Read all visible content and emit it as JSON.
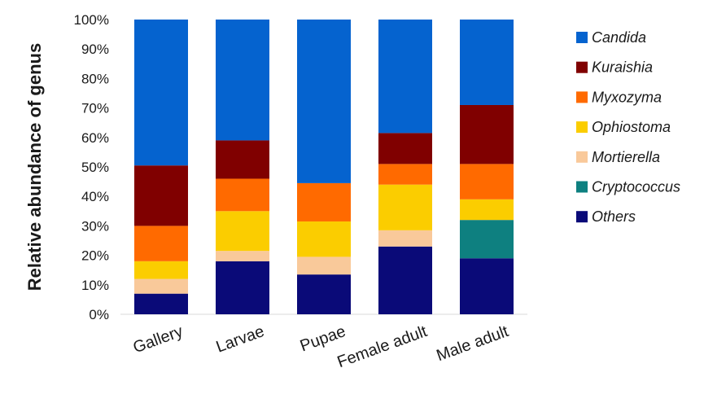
{
  "chart_data": {
    "type": "bar",
    "stacked": true,
    "ylabel": "Relative abundance of genus",
    "xlabel": "",
    "ylim": [
      0,
      100
    ],
    "yticks": [
      "0%",
      "10%",
      "20%",
      "30%",
      "40%",
      "50%",
      "60%",
      "70%",
      "80%",
      "90%",
      "100%"
    ],
    "categories": [
      "Gallery",
      "Larvae",
      "Pupae",
      "Female adult",
      "Male adult"
    ],
    "series": [
      {
        "name": "Others",
        "color": "#0a0a78",
        "values": [
          7,
          18,
          13.5,
          23,
          19
        ]
      },
      {
        "name": "Cryptococcus",
        "color": "#0e8080",
        "values": [
          0,
          0,
          0,
          0,
          13
        ]
      },
      {
        "name": "Mortierella",
        "color": "#f9c99a",
        "values": [
          5,
          3.5,
          6,
          5.5,
          0
        ]
      },
      {
        "name": "Ophiostoma",
        "color": "#fbcd00",
        "values": [
          6,
          13.5,
          12,
          15.5,
          7
        ]
      },
      {
        "name": "Myxozyma",
        "color": "#ff6a00",
        "values": [
          12,
          11,
          13,
          7,
          12
        ]
      },
      {
        "name": "Kuraishia",
        "color": "#800000",
        "values": [
          20.5,
          13,
          0,
          10.5,
          20
        ]
      },
      {
        "name": "Candida",
        "color": "#0563cf",
        "values": [
          49.5,
          41,
          55.5,
          38.5,
          29
        ]
      }
    ],
    "legend": {
      "position": "right",
      "order": [
        "Candida",
        "Kuraishia",
        "Myxozyma",
        "Ophiostoma",
        "Mortierella",
        "Cryptococcus",
        "Others"
      ]
    }
  }
}
